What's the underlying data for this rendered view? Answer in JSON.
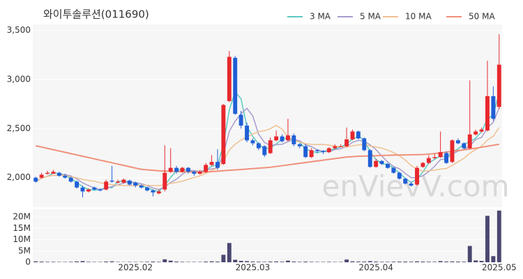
{
  "chart_data": {
    "type": "candlestick",
    "title": "와이투솔루션(011690)",
    "watermark": "enVievV.com",
    "categories": [
      null,
      null,
      null,
      null,
      null,
      null,
      null,
      null,
      null,
      null,
      null,
      null,
      null,
      null,
      null,
      null,
      null,
      "2025.02",
      null,
      null,
      null,
      null,
      null,
      null,
      null,
      null,
      null,
      null,
      null,
      null,
      null,
      null,
      null,
      null,
      null,
      null,
      null,
      "2025.03",
      null,
      null,
      null,
      null,
      null,
      null,
      null,
      null,
      null,
      null,
      null,
      null,
      null,
      null,
      null,
      null,
      null,
      null,
      null,
      null,
      "2025.04",
      null,
      null,
      null,
      null,
      null,
      null,
      null,
      null,
      null,
      null,
      null,
      null,
      null,
      null,
      null,
      null,
      null,
      null,
      null,
      null,
      "2025.05"
    ],
    "open": [
      2000,
      2000,
      2040,
      2040,
      2050,
      2020,
      2000,
      1960,
      1900,
      1860,
      1900,
      1880,
      1880,
      1970,
      1950,
      1950,
      1970,
      1950,
      1920,
      1900,
      1870,
      1840,
      1880,
      2060,
      2100,
      2060,
      2100,
      2060,
      2040,
      2060,
      2130,
      2160,
      2140,
      2780,
      3220,
      2640,
      2530,
      2380,
      2350,
      2320,
      2250,
      2380,
      2420,
      2380,
      2430,
      2340,
      2320,
      2210,
      2280,
      2270,
      2260,
      2300,
      2320,
      2320,
      2390,
      2470,
      2400,
      2280,
      2110,
      2170,
      2140,
      2100,
      2050,
      1990,
      1940,
      1930,
      2110,
      2150,
      2200,
      2210,
      2250,
      2160,
      2380,
      2350,
      2300,
      2440,
      2470,
      2480,
      2830,
      2720
    ],
    "high": [
      2010,
      2050,
      2070,
      2080,
      2060,
      2040,
      2010,
      1970,
      1920,
      1890,
      1910,
      1890,
      1980,
      2120,
      1980,
      1990,
      1980,
      1960,
      1930,
      1910,
      1880,
      1880,
      2330,
      2300,
      2120,
      2110,
      2110,
      2070,
      2080,
      2150,
      2230,
      2290,
      2750,
      3290,
      3240,
      2680,
      2560,
      2400,
      2360,
      2330,
      2410,
      2480,
      2440,
      2600,
      2450,
      2350,
      2340,
      2300,
      2290,
      2280,
      2310,
      2340,
      2340,
      2510,
      2490,
      2480,
      2410,
      2290,
      2190,
      2180,
      2150,
      2110,
      2060,
      2000,
      1960,
      2120,
      2160,
      2230,
      2240,
      2470,
      2270,
      2390,
      2400,
      2360,
      2990,
      2490,
      2510,
      3190,
      2930,
      3460
    ],
    "low": [
      1950,
      1990,
      2030,
      2040,
      2010,
      1990,
      1950,
      1890,
      1800,
      1850,
      1870,
      1860,
      1870,
      1950,
      1940,
      1940,
      1920,
      1900,
      1890,
      1860,
      1810,
      1830,
      1860,
      2050,
      2040,
      2050,
      2040,
      2020,
      2030,
      2050,
      2120,
      2080,
      2130,
      2770,
      2640,
      2500,
      2360,
      2330,
      2280,
      2210,
      2240,
      2370,
      2360,
      2370,
      2320,
      2300,
      2200,
      2200,
      2250,
      2240,
      2250,
      2290,
      2310,
      2310,
      2380,
      2390,
      2270,
      2100,
      2100,
      2130,
      2090,
      2040,
      1980,
      1930,
      1910,
      1920,
      2100,
      2140,
      2190,
      2200,
      2140,
      2150,
      2340,
      2290,
      2290,
      2430,
      2460,
      2470,
      2580,
      2700
    ],
    "close": [
      1960,
      2030,
      2050,
      2060,
      2020,
      2000,
      1960,
      1900,
      1860,
      1880,
      1880,
      1870,
      1960,
      1960,
      1960,
      1980,
      1930,
      1920,
      1900,
      1870,
      1850,
      1860,
      2050,
      2100,
      2060,
      2100,
      2060,
      2040,
      2060,
      2130,
      2160,
      2100,
      2740,
      3230,
      2650,
      2530,
      2380,
      2350,
      2300,
      2230,
      2380,
      2420,
      2370,
      2430,
      2340,
      2320,
      2210,
      2280,
      2270,
      2260,
      2300,
      2320,
      2320,
      2390,
      2470,
      2400,
      2280,
      2110,
      2170,
      2140,
      2100,
      2050,
      1990,
      1940,
      1920,
      2100,
      2150,
      2200,
      2210,
      2260,
      2150,
      2380,
      2350,
      2300,
      2440,
      2470,
      2490,
      2830,
      2600,
      3150
    ],
    "up_color": "#e8272d",
    "down_color": "#1f5fd6",
    "series": [
      {
        "name": "3 MA",
        "color": "#5cc8c0",
        "values": [
          1960,
          1995,
          2013,
          2047,
          2043,
          2027,
          1993,
          1953,
          1907,
          1880,
          1873,
          1877,
          1903,
          1897,
          1960,
          1967,
          1957,
          1943,
          1917,
          1897,
          1873,
          1860,
          1920,
          2003,
          2070,
          2087,
          2073,
          2067,
          2053,
          2077,
          2117,
          2130,
          2333,
          2690,
          2873,
          2803,
          2520,
          2420,
          2343,
          2293,
          2303,
          2343,
          2390,
          2407,
          2380,
          2363,
          2290,
          2270,
          2253,
          2270,
          2277,
          2293,
          2313,
          2343,
          2393,
          2420,
          2383,
          2263,
          2187,
          2140,
          2137,
          2097,
          2047,
          1993,
          1950,
          1987,
          2057,
          2150,
          2187,
          2223,
          2207,
          2263,
          2293,
          2343,
          2363,
          2403,
          2467,
          2597,
          2640,
          2860
        ]
      },
      {
        "name": "5 MA",
        "color": "#a89ccc",
        "values": [
          1960,
          1995,
          2013,
          2025,
          2024,
          2032,
          2018,
          1988,
          1948,
          1920,
          1896,
          1878,
          1890,
          1910,
          1926,
          1946,
          1958,
          1950,
          1938,
          1920,
          1894,
          1880,
          1906,
          1952,
          1984,
          2034,
          2074,
          2072,
          2064,
          2078,
          2090,
          2098,
          2238,
          2472,
          2576,
          2650,
          2706,
          2628,
          2442,
          2358,
          2328,
          2336,
          2340,
          2366,
          2388,
          2376,
          2334,
          2316,
          2284,
          2268,
          2264,
          2286,
          2294,
          2318,
          2360,
          2380,
          2372,
          2334,
          2286,
          2220,
          2160,
          2114,
          2090,
          2044,
          2000,
          2000,
          2020,
          2062,
          2116,
          2184,
          2194,
          2240,
          2270,
          2288,
          2324,
          2388,
          2410,
          2506,
          2566,
          2708
        ]
      },
      {
        "name": "10 MA",
        "color": "#f0c090",
        "values": [
          1960,
          1995,
          2013,
          2025,
          2024,
          2020,
          2011,
          1998,
          1983,
          1972,
          1964,
          1948,
          1939,
          1929,
          1923,
          1921,
          1918,
          1920,
          1924,
          1923,
          1920,
          1919,
          1928,
          1942,
          1952,
          1964,
          1984,
          2002,
          2018,
          2044,
          2075,
          2099,
          2168,
          2281,
          2340,
          2383,
          2415,
          2444,
          2468,
          2478,
          2500,
          2532,
          2495,
          2415,
          2384,
          2363,
          2346,
          2339,
          2336,
          2339,
          2331,
          2321,
          2316,
          2312,
          2325,
          2333,
          2340,
          2323,
          2313,
          2301,
          2281,
          2256,
          2224,
          2179,
          2124,
          2087,
          2063,
          2072,
          2076,
          2088,
          2093,
          2126,
          2162,
          2198,
          2249,
          2286,
          2320,
          2383,
          2422,
          2511
        ]
      },
      {
        "name": "50 MA",
        "color": "#f0907a",
        "values": [
          2325,
          2312,
          2298,
          2285,
          2272,
          2258,
          2245,
          2232,
          2218,
          2205,
          2192,
          2178,
          2165,
          2152,
          2138,
          2125,
          2112,
          2098,
          2085,
          2080,
          2075,
          2070,
          2068,
          2065,
          2063,
          2061,
          2060,
          2058,
          2058,
          2057,
          2062,
          2066,
          2071,
          2075,
          2079,
          2083,
          2088,
          2092,
          2097,
          2101,
          2106,
          2114,
          2122,
          2130,
          2138,
          2146,
          2154,
          2162,
          2170,
          2178,
          2186,
          2194,
          2202,
          2210,
          2214,
          2218,
          2220,
          2222,
          2224,
          2226,
          2228,
          2230,
          2231,
          2232,
          2233,
          2234,
          2236,
          2240,
          2246,
          2252,
          2260,
          2268,
          2276,
          2284,
          2292,
          2300,
          2310,
          2320,
          2330,
          2340
        ]
      }
    ],
    "ylim": [
      1700,
      3560
    ],
    "yticks": [
      {
        "value": 2000,
        "label": "2,000"
      },
      {
        "value": 2500,
        "label": "2,500"
      },
      {
        "value": 3000,
        "label": "3,000"
      },
      {
        "value": 3500,
        "label": "3,500"
      }
    ],
    "grid": true,
    "volume": {
      "color": "#4a4870",
      "ylim": [
        0,
        23400000
      ],
      "yticks": [
        {
          "value": 0,
          "label": "0"
        },
        {
          "value": 5000000,
          "label": "5M"
        },
        {
          "value": 10000000,
          "label": "10M"
        },
        {
          "value": 15000000,
          "label": "15M"
        },
        {
          "value": 20000000,
          "label": "20M"
        }
      ],
      "values": [
        400000,
        300000,
        200000,
        200000,
        150000,
        150000,
        200000,
        350000,
        500000,
        200000,
        150000,
        150000,
        300000,
        400000,
        150000,
        100000,
        150000,
        150000,
        150000,
        200000,
        300000,
        200000,
        1300000,
        700000,
        300000,
        200000,
        150000,
        150000,
        150000,
        300000,
        400000,
        300000,
        3300000,
        8500000,
        1100000,
        600000,
        500000,
        300000,
        250000,
        200000,
        300000,
        350000,
        250000,
        700000,
        300000,
        200000,
        300000,
        200000,
        150000,
        150000,
        200000,
        150000,
        150000,
        1200000,
        400000,
        300000,
        300000,
        500000,
        300000,
        200000,
        200000,
        250000,
        300000,
        300000,
        250000,
        400000,
        300000,
        250000,
        200000,
        500000,
        300000,
        350000,
        300000,
        250000,
        7200000,
        800000,
        600000,
        20500000,
        2700000,
        22800000
      ]
    }
  }
}
